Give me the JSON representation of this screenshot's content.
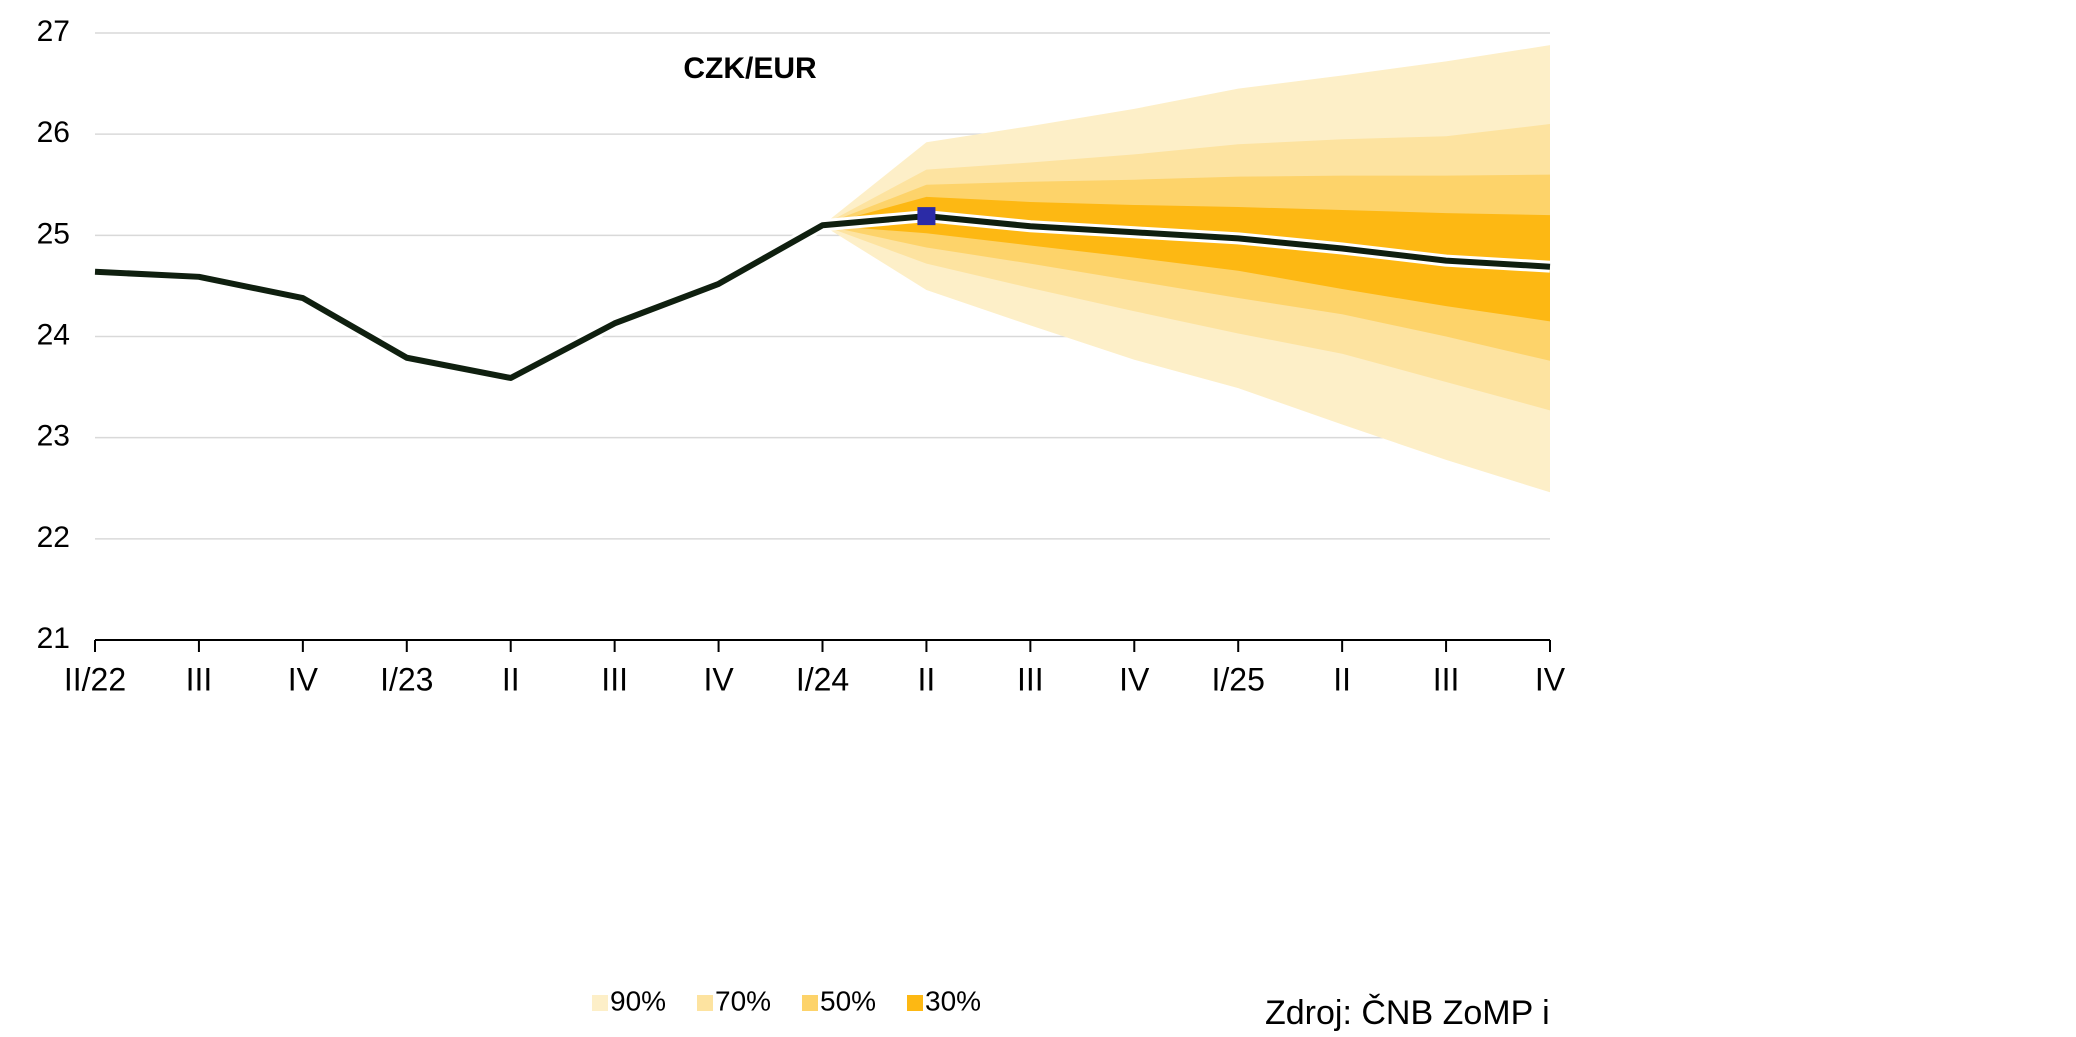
{
  "chart_data": {
    "type": "fan",
    "title": "CZK/EUR",
    "categories": [
      "II/22",
      "III",
      "IV",
      "I/23",
      "II",
      "III",
      "IV",
      "I/24",
      "II",
      "III",
      "IV",
      "I/25",
      "II",
      "III",
      "IV"
    ],
    "values": [
      24.64,
      24.59,
      24.38,
      23.79,
      23.59,
      24.13,
      24.52,
      25.1,
      25.19,
      25.09,
      25.03,
      24.97,
      24.87,
      24.75,
      24.69
    ],
    "line_color": "#0f1f0f",
    "highlight_index": 8,
    "highlight_color": "#2b2ba6",
    "bands": [
      {
        "name": "90%",
        "color": "#fdefc8",
        "upper": [
          null,
          null,
          null,
          null,
          null,
          null,
          null,
          25.1,
          25.92,
          26.08,
          26.25,
          26.45,
          26.58,
          26.72,
          26.88
        ],
        "lower": [
          null,
          null,
          null,
          null,
          null,
          null,
          null,
          25.1,
          24.46,
          24.11,
          23.77,
          23.49,
          23.13,
          22.78,
          22.46
        ]
      },
      {
        "name": "70%",
        "color": "#fde3a0",
        "upper": [
          null,
          null,
          null,
          null,
          null,
          null,
          null,
          25.1,
          25.65,
          25.72,
          25.8,
          25.9,
          25.95,
          25.98,
          26.1
        ],
        "lower": [
          null,
          null,
          null,
          null,
          null,
          null,
          null,
          25.1,
          24.72,
          24.48,
          24.25,
          24.03,
          23.83,
          23.55,
          23.27
        ]
      },
      {
        "name": "50%",
        "color": "#fdd36a",
        "upper": [
          null,
          null,
          null,
          null,
          null,
          null,
          null,
          25.1,
          25.5,
          25.53,
          25.55,
          25.58,
          25.59,
          25.59,
          25.6
        ],
        "lower": [
          null,
          null,
          null,
          null,
          null,
          null,
          null,
          25.1,
          24.88,
          24.72,
          24.55,
          24.38,
          24.22,
          24.0,
          23.76
        ]
      },
      {
        "name": "30%",
        "color": "#fdb813",
        "upper": [
          null,
          null,
          null,
          null,
          null,
          null,
          null,
          25.1,
          25.38,
          25.33,
          25.3,
          25.28,
          25.25,
          25.22,
          25.2
        ],
        "lower": [
          null,
          null,
          null,
          null,
          null,
          null,
          null,
          25.1,
          25.02,
          24.9,
          24.78,
          24.65,
          24.47,
          24.3,
          24.15
        ]
      }
    ],
    "ylim": [
      21,
      27
    ],
    "yticks": [
      21,
      22,
      23,
      24,
      25,
      26,
      27
    ],
    "grid": true,
    "source": "Zdroj: ČNB ZoMP i"
  }
}
